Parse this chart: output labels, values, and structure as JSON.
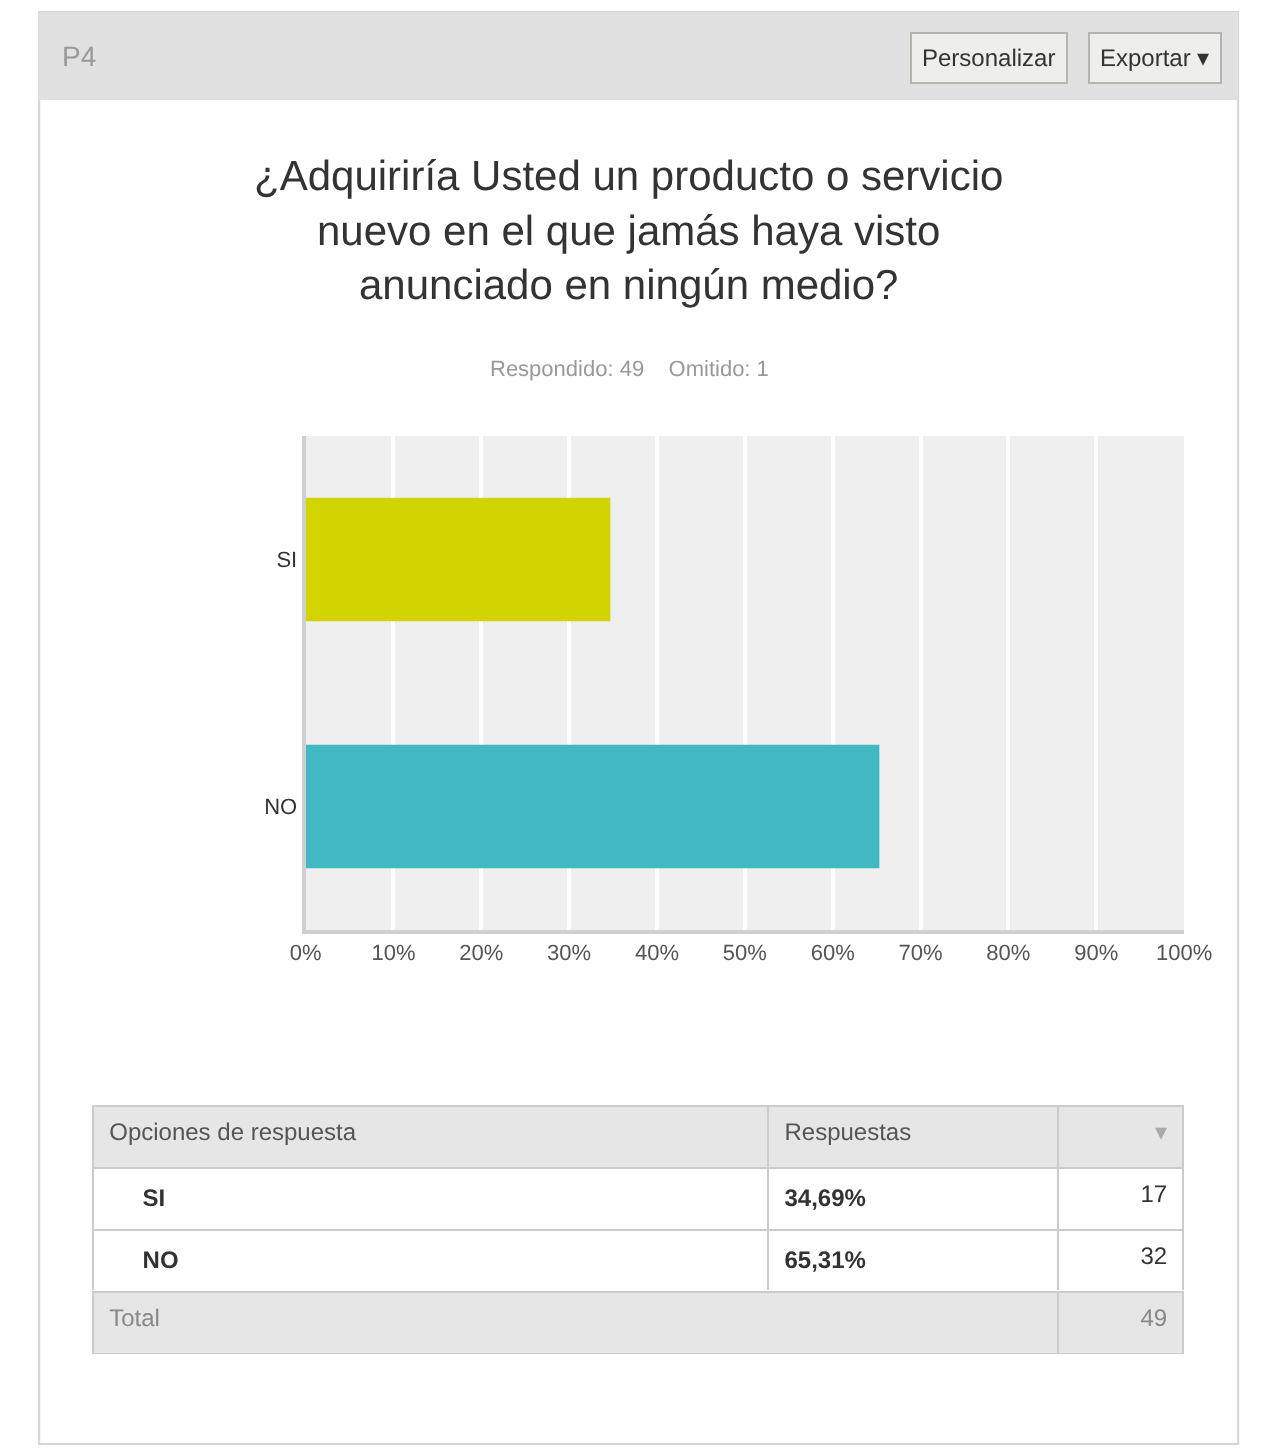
{
  "chart_data": {
    "type": "bar",
    "orientation": "horizontal",
    "title": "¿Adquiriría Usted un producto o servicio\nnuevo en el que jamás haya visto\nanunciado en ningún medio?",
    "subtitle": "Respondido: 49    Omitido: 1",
    "categories": [
      "SI",
      "NO"
    ],
    "values": [
      34.69,
      65.31
    ],
    "colors": [
      "#d1d400",
      "#42b8c2"
    ],
    "xlim": [
      0,
      100
    ],
    "xticks": [
      {
        "value": 0,
        "label": "0%"
      },
      {
        "value": 10,
        "label": "10%"
      },
      {
        "value": 20,
        "label": "20%"
      },
      {
        "value": 30,
        "label": "30%"
      },
      {
        "value": 40,
        "label": "40%"
      },
      {
        "value": 50,
        "label": "50%"
      },
      {
        "value": 60,
        "label": "60%"
      },
      {
        "value": 70,
        "label": "70%"
      },
      {
        "value": 80,
        "label": "80%"
      },
      {
        "value": 90,
        "label": "90%"
      },
      {
        "value": 100,
        "label": "100%"
      }
    ],
    "grid": "x",
    "annotations": [
      "P4",
      "Personalizar",
      "Exportar ▾",
      "Opciones de respuesta",
      "Respuestas",
      "▾",
      "34,69%",
      "17",
      "65,31%",
      "32",
      "Total",
      "49"
    ]
  }
}
